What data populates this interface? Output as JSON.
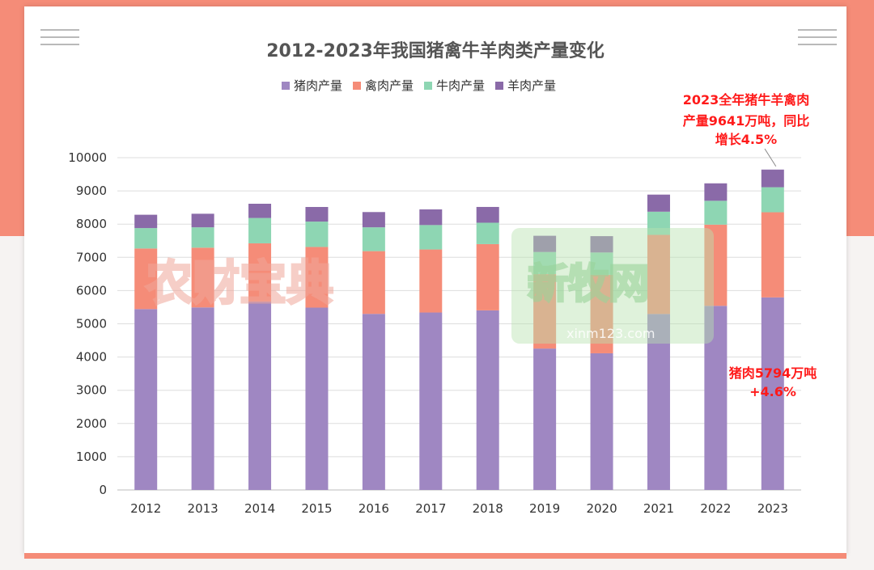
{
  "colors": {
    "pork": "#9f87c2",
    "poultry": "#f58c78",
    "beef": "#8ed6b3",
    "mutton": "#8a6aa8"
  },
  "chart_data": {
    "type": "bar",
    "stacked": true,
    "title": "2012-2023年我国猪禽牛羊肉类产量变化",
    "categories": [
      "2012",
      "2013",
      "2014",
      "2015",
      "2016",
      "2017",
      "2018",
      "2019",
      "2020",
      "2021",
      "2022",
      "2023"
    ],
    "series": [
      {
        "name": "猪肉产量",
        "values": [
          5443,
          5493,
          5671,
          5487,
          5299,
          5340,
          5404,
          4255,
          4113,
          5296,
          5541,
          5794
        ]
      },
      {
        "name": "禽肉产量",
        "values": [
          1823,
          1798,
          1751,
          1826,
          1888,
          1897,
          1994,
          2239,
          2361,
          2380,
          2443,
          2563
        ]
      },
      {
        "name": "牛肉产量",
        "values": [
          615,
          613,
          763,
          763,
          717,
          735,
          644,
          667,
          672,
          698,
          718,
          753
        ]
      },
      {
        "name": "羊肉产量",
        "values": [
          401,
          408,
          428,
          440,
          459,
          471,
          475,
          488,
          492,
          514,
          525,
          531
        ]
      }
    ],
    "ylim": [
      0,
      10000
    ],
    "yticks": [
      0,
      1000,
      2000,
      3000,
      4000,
      5000,
      6000,
      7000,
      8000,
      9000,
      10000
    ],
    "legend_position": "top",
    "grid": true,
    "annotations": [
      {
        "lines": [
          "2023全年猪牛羊禽肉",
          "产量9641万吨，同比",
          "增长4.5%"
        ]
      },
      {
        "lines": [
          "猪肉5794万吨",
          "+4.6%"
        ]
      }
    ]
  },
  "watermarks": {
    "left": "农财宝典",
    "right": "新牧网",
    "right_url": "xinm123.com"
  }
}
